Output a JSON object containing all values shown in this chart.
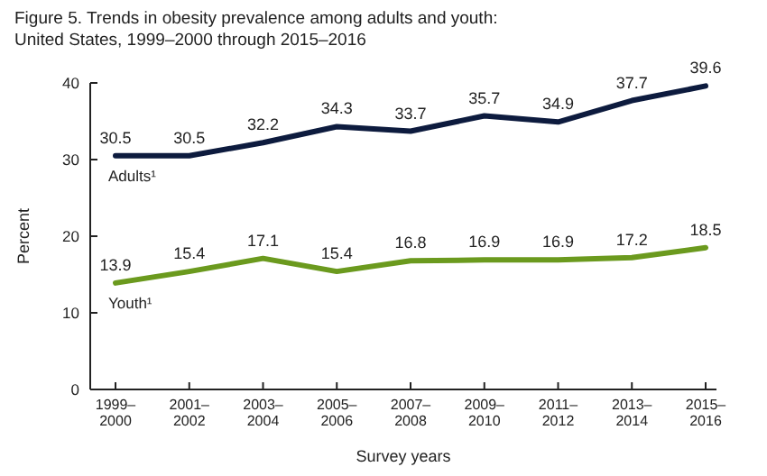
{
  "chart_data": {
    "type": "line",
    "title": "Figure 5. Trends in obesity prevalence among adults and youth:",
    "subtitle": "United States, 1999–2000 through 2015–2016",
    "xlabel": "Survey years",
    "ylabel": "Percent",
    "categories": [
      "1999–\n2000",
      "2001–\n2002",
      "2003–\n2004",
      "2005–\n2006",
      "2007–\n2008",
      "2009–\n2010",
      "2011–\n2012",
      "2013–\n2014",
      "2015–\n2016"
    ],
    "series": [
      {
        "name": "Adults¹",
        "color": "#0d1b3e",
        "values": [
          30.5,
          30.5,
          32.2,
          34.3,
          33.7,
          35.7,
          34.9,
          37.7,
          39.6
        ]
      },
      {
        "name": "Youth¹",
        "color": "#6b9a1e",
        "values": [
          13.9,
          15.4,
          17.1,
          15.4,
          16.8,
          16.9,
          16.9,
          17.2,
          18.5
        ]
      }
    ],
    "ylim": [
      0,
      40
    ],
    "yticks": [
      0,
      10,
      20,
      30,
      40
    ],
    "data_labels": true,
    "grid": false,
    "marker": "none",
    "line_style": "solid"
  }
}
